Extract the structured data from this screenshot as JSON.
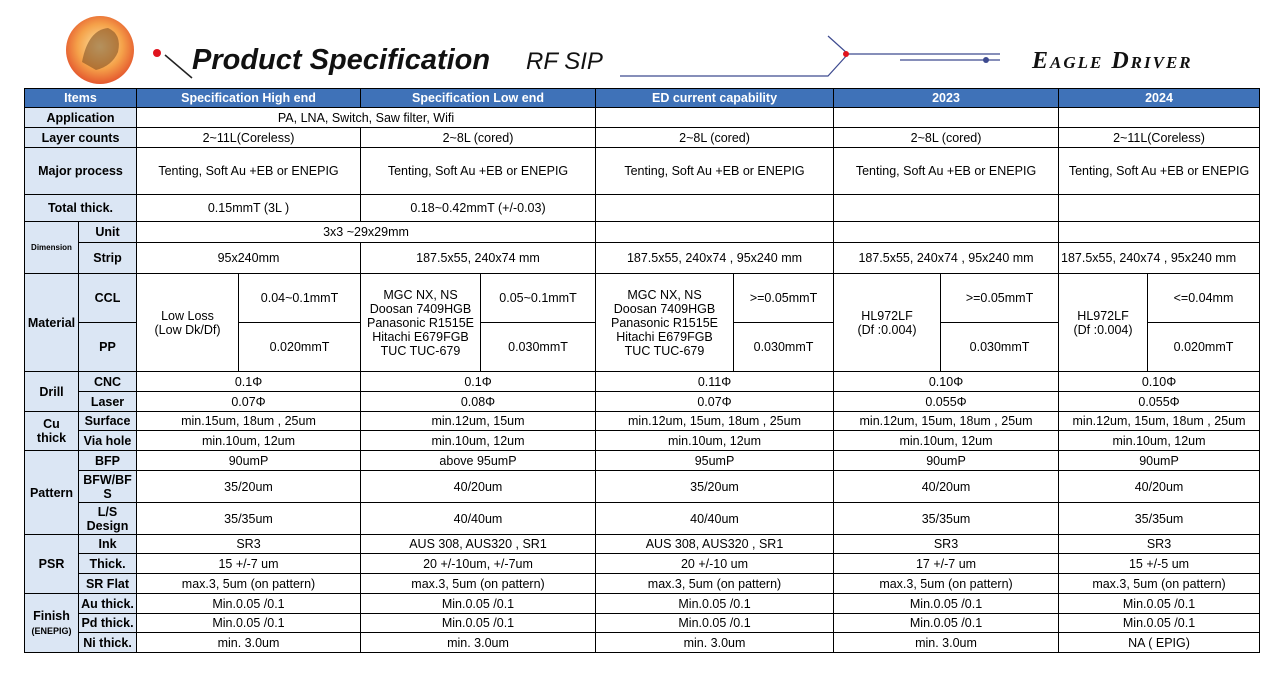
{
  "header": {
    "title": "Product Specification",
    "subtitle": "RF SIP",
    "brand": "Eagle Driver"
  },
  "table": {
    "columns": [
      "Items",
      "Specification High end",
      "Specification Low end",
      "ED current capability",
      "2023",
      "2024"
    ],
    "rows": [
      [
        "Application",
        "PA, LNA, Switch, Saw filter, Wifi"
      ],
      [
        "Layer counts",
        "2~11L(Coreless)",
        "2~8L (cored)",
        "2~8L (cored)",
        "2~8L (cored)",
        "2~11L(Coreless)"
      ],
      [
        "Major process",
        "Tenting, Soft Au +EB or ENEPIG",
        "Tenting, Soft Au +EB or ENEPIG",
        "Tenting, Soft Au +EB or ENEPIG",
        "Tenting, Soft Au +EB or ENEPIG",
        "Tenting, Soft Au +EB or ENEPIG"
      ],
      [
        "Total thick.",
        "0.15mmT (3L )",
        "0.18~0.42mmT (+/-0.03)"
      ],
      [
        "Dimension",
        "Unit",
        "3x3 ~29x29mm"
      ],
      [
        "Strip",
        "95x240mm",
        "187.5x55, 240x74 mm",
        "187.5x55, 240x74  , 95x240 mm",
        "187.5x55, 240x74  , 95x240 mm",
        "187.5x55, 240x74  , 95x240 mm"
      ],
      [
        "Material",
        "CCL",
        "Low Loss\n(Low Dk/Df)",
        "0.04~0.1mmT",
        "MGC NX, NS\nDoosan 7409HGB\nPanasonic R1515E\nHitachi E679FGB\nTUC TUC-679",
        "0.05~0.1mmT",
        "MGC NX, NS\nDoosan 7409HGB\nPanasonic R1515E\nHitachi E679FGB\nTUC TUC-679",
        ">=0.05mmT",
        "HL972LF\n(Df :0.004)",
        ">=0.05mmT",
        "HL972LF\n(Df :0.004)",
        "<=0.04mm"
      ],
      [
        "PP",
        "0.020mmT",
        "0.030mmT",
        "0.030mmT",
        "0.030mmT",
        "0.020mmT"
      ],
      [
        "Drill",
        "CNC",
        "0.1Φ",
        "0.1Φ",
        "0.11Φ",
        "0.10Φ",
        "0.10Φ"
      ],
      [
        "Laser",
        "0.07Φ",
        "0.08Φ",
        "0.07Φ",
        "0.055Φ",
        "0.055Φ"
      ],
      [
        "Cu thick",
        "Surface",
        "min.15um, 18um , 25um",
        "min.12um, 15um",
        "min.12um, 15um, 18um , 25um",
        "min.12um, 15um, 18um , 25um",
        "min.12um, 15um, 18um , 25um"
      ],
      [
        "Via hole",
        "min.10um, 12um",
        "min.10um, 12um",
        "min.10um, 12um",
        "min.10um, 12um",
        "min.10um, 12um"
      ],
      [
        "Pattern",
        "BFP",
        "90umP",
        "above 95umP",
        "95umP",
        "90umP",
        "90umP"
      ],
      [
        "BFW/BFS",
        "35/20um",
        "40/20um",
        "35/20um",
        "40/20um",
        "40/20um"
      ],
      [
        "L/S Design",
        "35/35um",
        "40/40um",
        "40/40um",
        "35/35um",
        "35/35um"
      ],
      [
        "PSR",
        "Ink",
        "SR3",
        "AUS 308, AUS320 , SR1",
        "AUS 308, AUS320 , SR1",
        "SR3",
        "SR3"
      ],
      [
        "Thick.",
        "15 +/-7 um",
        "20 +/-10um, +/-7um",
        "20 +/-10 um",
        "17 +/-7 um",
        "15 +/-5 um"
      ],
      [
        "SR Flat",
        "max.3, 5um (on pattern)",
        "max.3, 5um (on pattern)",
        "max.3, 5um (on pattern)",
        "max.3, 5um (on pattern)",
        "max.3, 5um (on pattern)"
      ],
      [
        "Finish",
        "(ENEPIG)",
        "Au thick.",
        "Min.0.05 /0.1",
        "Min.0.05 /0.1",
        "Min.0.05 /0.1",
        "Min.0.05 /0.1",
        "Min.0.05 /0.1"
      ],
      [
        "Pd thick.",
        "Min.0.05 /0.1",
        "Min.0.05 /0.1",
        "Min.0.05 /0.1",
        "Min.0.05 /0.1",
        "Min.0.05 /0.1"
      ],
      [
        "Ni thick.",
        "min. 3.0um",
        "min. 3.0um",
        "min. 3.0um",
        "min. 3.0um",
        "NA ( EPIG)"
      ]
    ]
  }
}
